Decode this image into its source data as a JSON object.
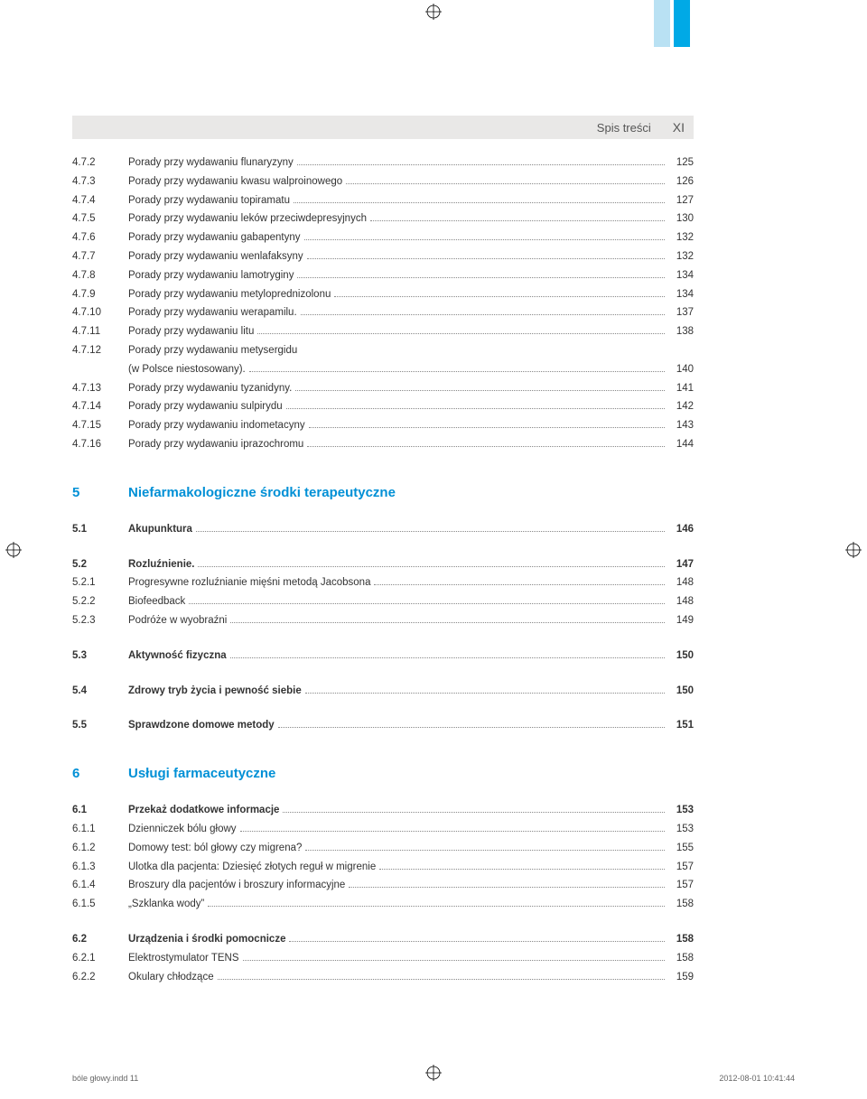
{
  "header": {
    "label": "Spis treści",
    "page_roman": "XI"
  },
  "tabs": {
    "colors": [
      "#b9e1f3",
      "#00a9e6"
    ]
  },
  "reg_mark_color": "#000000",
  "sections": [
    {
      "type": "items",
      "rows": [
        {
          "num": "4.7.2",
          "title": "Porady przy wydawaniu flunaryzyny",
          "page": "125"
        },
        {
          "num": "4.7.3",
          "title": "Porady przy wydawaniu kwasu walproinowego",
          "page": "126"
        },
        {
          "num": "4.7.4",
          "title": "Porady przy wydawaniu topiramatu",
          "page": "127"
        },
        {
          "num": "4.7.5",
          "title": "Porady przy wydawaniu leków przeciwdepresyjnych",
          "page": "130"
        },
        {
          "num": "4.7.6",
          "title": "Porady przy wydawaniu gabapentyny",
          "page": "132"
        },
        {
          "num": "4.7.7",
          "title": "Porady przy wydawaniu wenlafaksyny",
          "page": "132"
        },
        {
          "num": "4.7.8",
          "title": "Porady przy wydawaniu lamotryginy",
          "page": "134"
        },
        {
          "num": "4.7.9",
          "title": "Porady przy wydawaniu metyloprednizolonu",
          "page": "134"
        },
        {
          "num": "4.7.10",
          "title": "Porady przy wydawaniu werapamilu.",
          "page": "137"
        },
        {
          "num": "4.7.11",
          "title": "Porady przy wydawaniu litu",
          "page": "138"
        },
        {
          "num": "4.7.12",
          "title": "Porady przy wydawaniu metysergidu\n(w Polsce niestosowany).",
          "page": "140"
        },
        {
          "num": "4.7.13",
          "title": "Porady przy wydawaniu tyzanidyny.",
          "page": "141"
        },
        {
          "num": "4.7.14",
          "title": "Porady przy wydawaniu sulpirydu",
          "page": "142"
        },
        {
          "num": "4.7.15",
          "title": "Porady przy wydawaniu indometacyny",
          "page": "143"
        },
        {
          "num": "4.7.16",
          "title": "Porady przy wydawaniu iprazochromu",
          "page": "144"
        }
      ]
    },
    {
      "type": "chapter",
      "num": "5",
      "title": "Niefarmakologiczne środki terapeutyczne",
      "groups": [
        {
          "rows": [
            {
              "num": "5.1",
              "title": "Akupunktura",
              "page": "146",
              "bold": true
            }
          ]
        },
        {
          "rows": [
            {
              "num": "5.2",
              "title": "Rozluźnienie.",
              "page": "147",
              "bold": true
            },
            {
              "num": "5.2.1",
              "title": "Progresywne rozluźnianie mięśni metodą Jacobsona",
              "page": "148"
            },
            {
              "num": "5.2.2",
              "title": "Biofeedback",
              "page": "148"
            },
            {
              "num": "5.2.3",
              "title": "Podróże w wyobraźni",
              "page": "149"
            }
          ]
        },
        {
          "rows": [
            {
              "num": "5.3",
              "title": "Aktywność fizyczna",
              "page": "150",
              "bold": true
            }
          ]
        },
        {
          "rows": [
            {
              "num": "5.4",
              "title": "Zdrowy tryb życia i pewność siebie",
              "page": "150",
              "bold": true
            }
          ]
        },
        {
          "rows": [
            {
              "num": "5.5",
              "title": "Sprawdzone domowe metody",
              "page": "151",
              "bold": true
            }
          ]
        }
      ]
    },
    {
      "type": "chapter",
      "num": "6",
      "title": "Usługi farmaceutyczne",
      "groups": [
        {
          "rows": [
            {
              "num": "6.1",
              "title": "Przekaż dodatkowe informacje",
              "page": "153",
              "bold": true
            },
            {
              "num": "6.1.1",
              "title": "Dzienniczek bólu głowy",
              "page": "153"
            },
            {
              "num": "6.1.2",
              "title": "Domowy test: ból głowy czy migrena?",
              "page": "155"
            },
            {
              "num": "6.1.3",
              "title": "Ulotka dla pacjenta: Dziesięć złotych reguł w migrenie",
              "page": "157"
            },
            {
              "num": "6.1.4",
              "title": "Broszury dla pacjentów i broszury informacyjne",
              "page": "157"
            },
            {
              "num": "6.1.5",
              "title": "„Szklanka wody”",
              "page": "158"
            }
          ]
        },
        {
          "rows": [
            {
              "num": "6.2",
              "title": "Urządzenia i środki pomocnicze",
              "page": "158",
              "bold": true
            },
            {
              "num": "6.2.1",
              "title": "Elektrostymulator TENS",
              "page": "158"
            },
            {
              "num": "6.2.2",
              "title": "Okulary chłodzące",
              "page": "159"
            }
          ]
        }
      ]
    }
  ],
  "footer": {
    "left": "bóle głowy.indd   11",
    "right": "2012-08-01   10:41:44"
  }
}
